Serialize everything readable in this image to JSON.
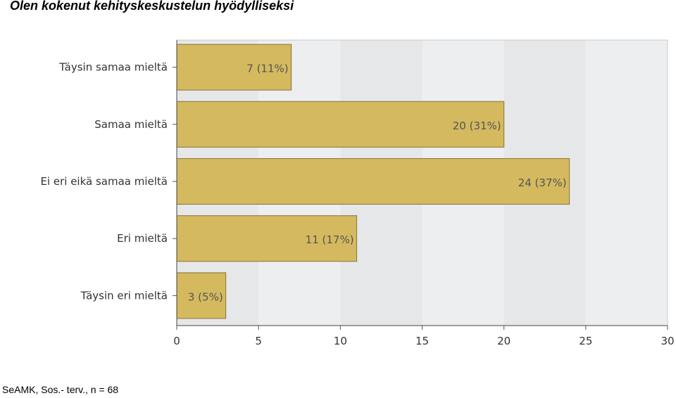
{
  "title": "Olen kokenut kehityskeskustelun hyödylliseksi",
  "footnote": "SeAMK, Sos.- terv., n = 68",
  "chart_data": {
    "type": "bar",
    "orientation": "horizontal",
    "categories": [
      "Täysin samaa mieltä",
      "Samaa mieltä",
      "Ei eri eikä samaa mieltä",
      "Eri mieltä",
      "Täysin eri mieltä"
    ],
    "values": [
      7,
      20,
      24,
      11,
      3
    ],
    "data_labels": [
      "7 (11%)",
      "20 (31%)",
      "24 (37%)",
      "11 (17%)",
      "3 (5%)"
    ],
    "xlim": [
      0,
      30
    ],
    "x_ticks": [
      "0",
      "5",
      "10",
      "15",
      "20",
      "25",
      "30"
    ],
    "bar_color": "#d4b95e",
    "bar_border_color": "#8a7432",
    "grid": false,
    "legend": "none"
  }
}
